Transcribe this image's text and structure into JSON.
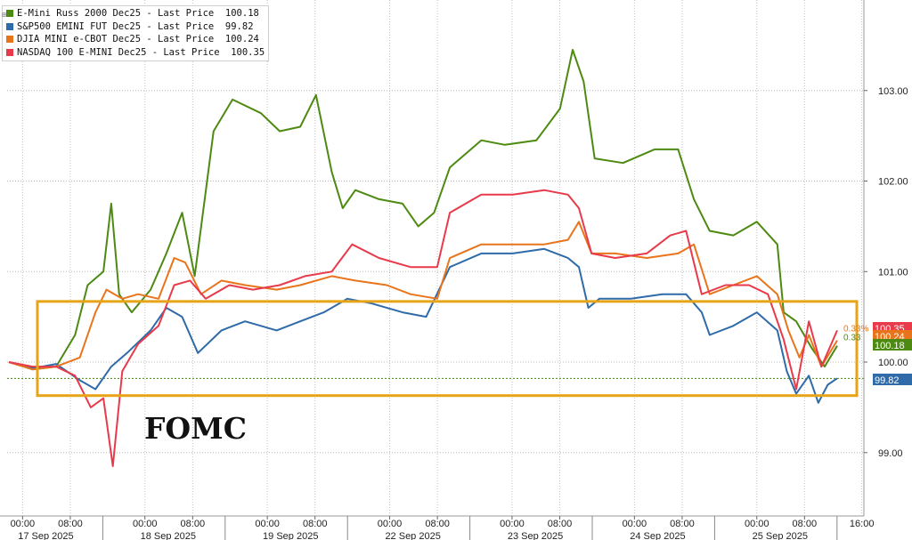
{
  "chart_data": {
    "type": "line",
    "legend": {
      "placement": "top-left",
      "entries": [
        {
          "name": "E-Mini Russ 2000 Dec25 - Last Price",
          "value": "100.18",
          "color": "#4d8a12"
        },
        {
          "name": "S&P500 EMINI FUT Dec25 - Last Price",
          "value": "99.82",
          "color": "#2e6ba8"
        },
        {
          "name": "DJIA MINI e-CBOT Dec25 - Last Price",
          "value": "100.24",
          "color": "#e8741c"
        },
        {
          "name": "NASDAQ 100 E-MINI Dec25 - Last Price",
          "value": "100.35",
          "color": "#e83a4a"
        }
      ]
    },
    "y_axis": {
      "position": "right",
      "ylim": [
        98.3,
        104.0
      ],
      "ticks": [
        "99.00",
        "100.00",
        "101.00",
        "102.00",
        "103.00"
      ],
      "reference_line": 99.82
    },
    "x_axis": {
      "days": [
        "17 Sep 2025",
        "18 Sep 2025",
        "19 Sep 2025",
        "22 Sep 2025",
        "23 Sep 2025",
        "24 Sep 2025",
        "25 Sep 2025"
      ],
      "time_ticks": [
        "00:00",
        "08:00"
      ],
      "last_time_tick": "16:00"
    },
    "grid": true,
    "series": [
      {
        "name": "E-Mini Russ 2000 Dec25 - Last Price",
        "color": "#4d8a12",
        "points": [
          [
            0,
            100.0
          ],
          [
            0.15,
            99.92
          ],
          [
            0.3,
            99.95
          ],
          [
            0.42,
            100.3
          ],
          [
            0.5,
            100.85
          ],
          [
            0.6,
            101.0
          ],
          [
            0.65,
            101.75
          ],
          [
            0.7,
            100.75
          ],
          [
            0.78,
            100.55
          ],
          [
            0.9,
            100.8
          ],
          [
            1.0,
            101.2
          ],
          [
            1.1,
            101.65
          ],
          [
            1.18,
            100.95
          ],
          [
            1.3,
            102.55
          ],
          [
            1.42,
            102.9
          ],
          [
            1.6,
            102.75
          ],
          [
            1.72,
            102.55
          ],
          [
            1.85,
            102.6
          ],
          [
            1.95,
            102.95
          ],
          [
            2.05,
            102.1
          ],
          [
            2.12,
            101.7
          ],
          [
            2.2,
            101.9
          ],
          [
            2.35,
            101.8
          ],
          [
            2.5,
            101.75
          ],
          [
            2.6,
            101.5
          ],
          [
            2.7,
            101.65
          ],
          [
            2.8,
            102.15
          ],
          [
            3.0,
            102.45
          ],
          [
            3.15,
            102.4
          ],
          [
            3.35,
            102.45
          ],
          [
            3.5,
            102.8
          ],
          [
            3.58,
            103.45
          ],
          [
            3.65,
            103.1
          ],
          [
            3.72,
            102.25
          ],
          [
            3.9,
            102.2
          ],
          [
            4.1,
            102.35
          ],
          [
            4.25,
            102.35
          ],
          [
            4.35,
            101.8
          ],
          [
            4.45,
            101.45
          ],
          [
            4.6,
            101.4
          ],
          [
            4.75,
            101.55
          ],
          [
            4.88,
            101.3
          ],
          [
            4.92,
            100.55
          ],
          [
            5.0,
            100.45
          ],
          [
            5.1,
            100.15
          ],
          [
            5.18,
            99.95
          ],
          [
            5.26,
            100.18
          ]
        ]
      },
      {
        "name": "S&P500 EMINI FUT Dec25 - Last Price",
        "color": "#2e6ba8",
        "points": [
          [
            0,
            100.0
          ],
          [
            0.15,
            99.93
          ],
          [
            0.3,
            99.98
          ],
          [
            0.45,
            99.8
          ],
          [
            0.55,
            99.7
          ],
          [
            0.65,
            99.95
          ],
          [
            0.75,
            100.1
          ],
          [
            0.9,
            100.35
          ],
          [
            1.0,
            100.6
          ],
          [
            1.1,
            100.5
          ],
          [
            1.2,
            100.1
          ],
          [
            1.35,
            100.35
          ],
          [
            1.5,
            100.45
          ],
          [
            1.7,
            100.35
          ],
          [
            1.85,
            100.45
          ],
          [
            2.0,
            100.55
          ],
          [
            2.15,
            100.7
          ],
          [
            2.3,
            100.65
          ],
          [
            2.5,
            100.55
          ],
          [
            2.65,
            100.5
          ],
          [
            2.8,
            101.05
          ],
          [
            3.0,
            101.2
          ],
          [
            3.2,
            101.2
          ],
          [
            3.4,
            101.25
          ],
          [
            3.55,
            101.15
          ],
          [
            3.62,
            101.05
          ],
          [
            3.68,
            100.6
          ],
          [
            3.75,
            100.7
          ],
          [
            3.95,
            100.7
          ],
          [
            4.15,
            100.75
          ],
          [
            4.3,
            100.75
          ],
          [
            4.4,
            100.55
          ],
          [
            4.45,
            100.3
          ],
          [
            4.6,
            100.4
          ],
          [
            4.75,
            100.55
          ],
          [
            4.88,
            100.35
          ],
          [
            4.94,
            99.9
          ],
          [
            5.0,
            99.65
          ],
          [
            5.08,
            99.85
          ],
          [
            5.14,
            99.55
          ],
          [
            5.2,
            99.75
          ],
          [
            5.26,
            99.82
          ]
        ]
      },
      {
        "name": "DJIA MINI e-CBOT Dec25 - Last Price",
        "color": "#e8741c",
        "points": [
          [
            0,
            100.0
          ],
          [
            0.15,
            99.92
          ],
          [
            0.3,
            99.95
          ],
          [
            0.45,
            100.05
          ],
          [
            0.55,
            100.55
          ],
          [
            0.62,
            100.8
          ],
          [
            0.72,
            100.7
          ],
          [
            0.82,
            100.75
          ],
          [
            0.95,
            100.7
          ],
          [
            1.05,
            101.15
          ],
          [
            1.12,
            101.1
          ],
          [
            1.22,
            100.75
          ],
          [
            1.35,
            100.9
          ],
          [
            1.5,
            100.85
          ],
          [
            1.7,
            100.8
          ],
          [
            1.85,
            100.85
          ],
          [
            2.05,
            100.95
          ],
          [
            2.2,
            100.9
          ],
          [
            2.4,
            100.85
          ],
          [
            2.55,
            100.75
          ],
          [
            2.72,
            100.7
          ],
          [
            2.8,
            101.15
          ],
          [
            3.0,
            101.3
          ],
          [
            3.2,
            101.3
          ],
          [
            3.4,
            101.3
          ],
          [
            3.55,
            101.35
          ],
          [
            3.62,
            101.55
          ],
          [
            3.7,
            101.2
          ],
          [
            3.85,
            101.2
          ],
          [
            4.05,
            101.15
          ],
          [
            4.25,
            101.2
          ],
          [
            4.35,
            101.3
          ],
          [
            4.45,
            100.75
          ],
          [
            4.6,
            100.85
          ],
          [
            4.75,
            100.95
          ],
          [
            4.88,
            100.75
          ],
          [
            4.95,
            100.35
          ],
          [
            5.02,
            100.05
          ],
          [
            5.08,
            100.3
          ],
          [
            5.16,
            99.95
          ],
          [
            5.26,
            100.24
          ]
        ]
      },
      {
        "name": "NASDAQ 100 E-MINI Dec25 - Last Price",
        "color": "#e83a4a",
        "points": [
          [
            0,
            100.0
          ],
          [
            0.15,
            99.95
          ],
          [
            0.3,
            99.95
          ],
          [
            0.42,
            99.85
          ],
          [
            0.52,
            99.5
          ],
          [
            0.6,
            99.6
          ],
          [
            0.66,
            98.85
          ],
          [
            0.72,
            99.9
          ],
          [
            0.82,
            100.2
          ],
          [
            0.95,
            100.4
          ],
          [
            1.05,
            100.85
          ],
          [
            1.15,
            100.9
          ],
          [
            1.25,
            100.7
          ],
          [
            1.4,
            100.85
          ],
          [
            1.55,
            100.8
          ],
          [
            1.72,
            100.85
          ],
          [
            1.88,
            100.95
          ],
          [
            2.05,
            101.0
          ],
          [
            2.18,
            101.3
          ],
          [
            2.35,
            101.15
          ],
          [
            2.55,
            101.05
          ],
          [
            2.72,
            101.05
          ],
          [
            2.8,
            101.65
          ],
          [
            3.0,
            101.85
          ],
          [
            3.2,
            101.85
          ],
          [
            3.4,
            101.9
          ],
          [
            3.55,
            101.85
          ],
          [
            3.62,
            101.7
          ],
          [
            3.7,
            101.2
          ],
          [
            3.85,
            101.15
          ],
          [
            4.05,
            101.2
          ],
          [
            4.2,
            101.4
          ],
          [
            4.3,
            101.45
          ],
          [
            4.4,
            100.75
          ],
          [
            4.55,
            100.85
          ],
          [
            4.7,
            100.85
          ],
          [
            4.82,
            100.75
          ],
          [
            4.92,
            100.25
          ],
          [
            5.0,
            99.7
          ],
          [
            5.08,
            100.45
          ],
          [
            5.16,
            99.95
          ],
          [
            5.26,
            100.35
          ]
        ]
      }
    ]
  },
  "annotations": {
    "event_label": "FOMC",
    "highlight_box_color": "#e8a418",
    "pct_labels": [
      "0.33%",
      "0.33"
    ]
  }
}
